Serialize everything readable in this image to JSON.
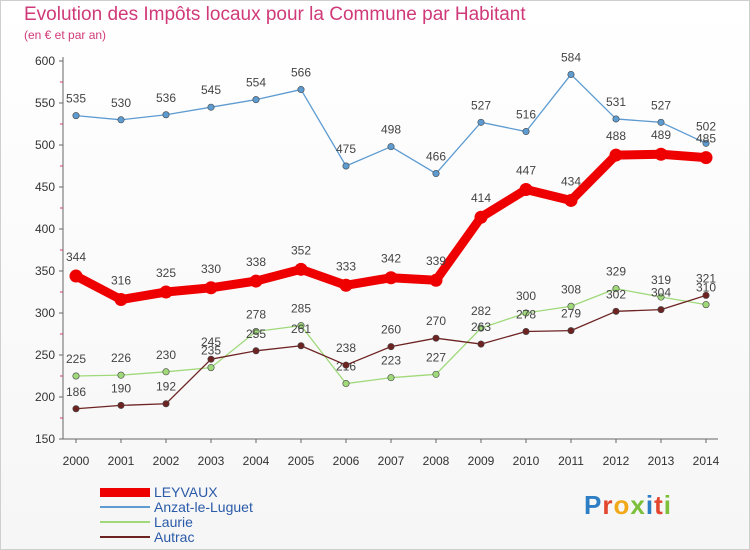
{
  "header": {
    "title": "Evolution des Impôts locaux pour la Commune par Habitant",
    "subtitle": "(en € et par an)"
  },
  "brand": {
    "letters": [
      {
        "ch": "P",
        "color": "#2e7ec4"
      },
      {
        "ch": "r",
        "color": "#e2462e"
      },
      {
        "ch": "o",
        "color": "#f1a91a"
      },
      {
        "ch": "x",
        "color": "#7cbf3a"
      },
      {
        "ch": "i",
        "color": "#2e7ec4"
      },
      {
        "ch": "t",
        "color": "#e2462e"
      },
      {
        "ch": "i",
        "color": "#7cbf3a"
      }
    ]
  },
  "chart_data": {
    "type": "line",
    "title": "Evolution des Impôts locaux pour la Commune par Habitant",
    "ylabel": "(en € et par an)",
    "x": [
      "2000",
      "2001",
      "2002",
      "2003",
      "2004",
      "2005",
      "2006",
      "2007",
      "2008",
      "2009",
      "2010",
      "2011",
      "2012",
      "2013",
      "2014"
    ],
    "ylim": [
      150,
      600
    ],
    "yticks": [
      150,
      200,
      250,
      300,
      350,
      400,
      450,
      500,
      550,
      600
    ],
    "grid": false,
    "legend_position": "bottom-left",
    "series": [
      {
        "name": "LEYVAUX",
        "color": "#ee0000",
        "values": [
          344,
          316,
          325,
          330,
          338,
          352,
          333,
          342,
          339,
          414,
          447,
          434,
          488,
          489,
          485
        ]
      },
      {
        "name": "Anzat-le-Luguet",
        "color": "#5d9bd1",
        "values": [
          535,
          530,
          536,
          545,
          554,
          566,
          475,
          498,
          466,
          527,
          516,
          584,
          531,
          527,
          502
        ]
      },
      {
        "name": "Laurie",
        "color": "#9fd97a",
        "values": [
          225,
          226,
          230,
          235,
          278,
          285,
          216,
          223,
          227,
          282,
          300,
          308,
          329,
          319,
          310
        ]
      },
      {
        "name": "Autrac",
        "color": "#6e2323",
        "values": [
          186,
          190,
          192,
          245,
          255,
          261,
          238,
          260,
          270,
          263,
          278,
          279,
          302,
          304,
          321
        ]
      }
    ]
  }
}
